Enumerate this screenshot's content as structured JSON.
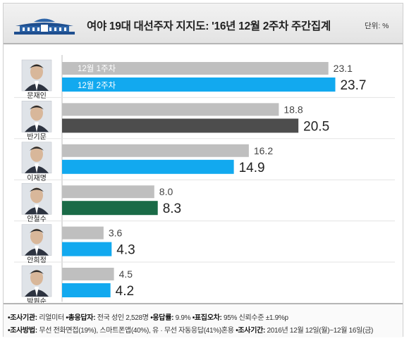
{
  "header": {
    "title": "여야 19대 대선주자 지지도: '16년 12월 2주차 주간집계",
    "unit": "단위: %"
  },
  "chart_data": {
    "type": "bar",
    "categories": [
      "문재인",
      "반기문",
      "이재명",
      "안철수",
      "안희정",
      "박원순"
    ],
    "series": [
      {
        "name": "12월 1주차",
        "values": [
          23.1,
          18.8,
          16.2,
          8.0,
          3.6,
          4.5
        ]
      },
      {
        "name": "12월 2주차",
        "values": [
          23.7,
          20.5,
          14.9,
          8.3,
          4.3,
          4.2
        ]
      }
    ],
    "value_labels_prev": [
      "23.1",
      "18.8",
      "16.2",
      "8.0",
      "3.6",
      "4.5"
    ],
    "value_labels_curr": [
      "23.7",
      "20.5",
      "14.9",
      "8.3",
      "4.3",
      "4.2"
    ],
    "xlim": [
      0,
      24.5
    ],
    "colors": {
      "prev": "#bfbfbf",
      "curr": [
        "#12a9ef",
        "#4d4d4d",
        "#12a9ef",
        "#1a6b47",
        "#12a9ef",
        "#12a9ef"
      ]
    }
  },
  "footer": {
    "line1": [
      {
        "label": "•조사기관:",
        "text": " 리얼미터 "
      },
      {
        "label": "•총응답자:",
        "text": " 전국 성인 2,528명 "
      },
      {
        "label": "•응답률:",
        "text": " 9.9% "
      },
      {
        "label": "•표집오차:",
        "text": " 95% 신뢰수준 ±1.9%p"
      }
    ],
    "line2": [
      {
        "label": "•조사방법:",
        "text": " 무선 전화면접(19%), 스마트폰앱(40%), 유 · 무선 자동응답(41%)혼용 "
      },
      {
        "label": "•조사기간:",
        "text": " 2016년 12월 12일(월)~12월 16일(금)"
      }
    ]
  }
}
